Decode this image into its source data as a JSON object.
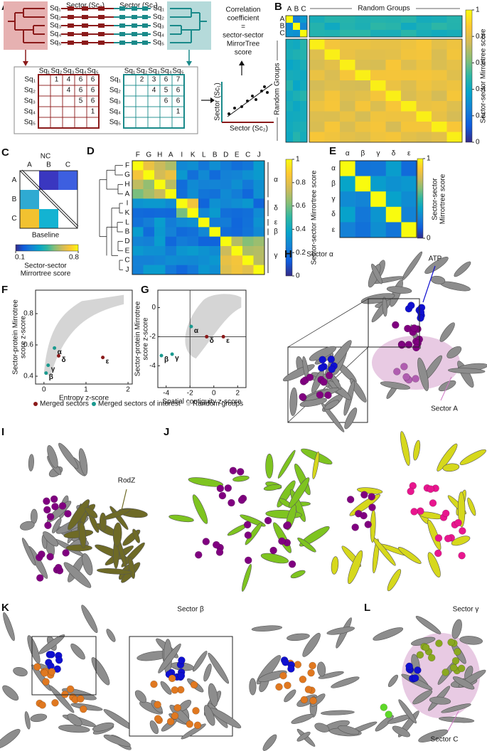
{
  "panels": {
    "A": {
      "letter": "A",
      "sector_2": "Sector (Sc₂)",
      "sector_1": "Sector (Sc₁)",
      "sequences": [
        "Sq₁",
        "Sq₂",
        "Sq₃",
        "Sq₄",
        "Sq₅"
      ],
      "matrix_left_rows": [
        [
          1,
          4,
          6,
          6
        ],
        [
          4,
          6,
          6
        ],
        [
          5,
          6
        ],
        [
          1
        ]
      ],
      "matrix_right_rows": [
        [
          2,
          3,
          6,
          7
        ],
        [
          4,
          5,
          6
        ],
        [
          6,
          6
        ],
        [
          1
        ]
      ],
      "correlation_lines": [
        "Correlation",
        "coefficient",
        "=",
        "sector-sector",
        "MirrorTree",
        "score"
      ],
      "scatter_y": "Sector (Sc₁)",
      "scatter_x": "Sector (Sc₂)"
    },
    "B": {
      "letter": "B",
      "sectors": [
        "A",
        "B",
        "C"
      ],
      "random_top": "Random Groups",
      "random_left": "Random Groups",
      "colorbar_lim": [
        0,
        1
      ],
      "colorbar_ticks": [
        0,
        0.2,
        0.4,
        0.6,
        0.8,
        1
      ],
      "colorbar_label": "Sector-sector Mirrortree score"
    },
    "C": {
      "letter": "C",
      "top": "NC",
      "bottom": "Baseline",
      "columns": [
        "A",
        "B",
        "C"
      ],
      "rows": [
        "A",
        "B",
        "C"
      ],
      "colorbar_lim": [
        0.1,
        0.8
      ],
      "colorbar_ticks": [
        0.1,
        0.8
      ],
      "colorbar_label_lines": [
        "Sector-sector",
        "Mirrortree score"
      ]
    },
    "D": {
      "letter": "D",
      "labels": [
        "F",
        "G",
        "H",
        "A",
        "I",
        "K",
        "L",
        "B",
        "D",
        "E",
        "C",
        "J"
      ],
      "groups": [
        "α",
        "δ",
        "ε",
        "β",
        "γ"
      ],
      "colorbar_lim": [
        0,
        1
      ],
      "colorbar_ticks": [
        0,
        0.2,
        0.4,
        0.6,
        0.8,
        1
      ],
      "colorbar_label": "Sector-sector Mirrortree score"
    },
    "E": {
      "letter": "E",
      "labels": [
        "α",
        "β",
        "γ",
        "δ",
        "ε"
      ],
      "colorbar_lim": [
        0,
        1
      ],
      "colorbar_ticks": [
        0,
        1
      ],
      "colorbar_label_lines": [
        "Sector-sector",
        "Mirrortree score"
      ]
    },
    "F": {
      "letter": "F",
      "type": "scatter",
      "y_label_lines": [
        "Sector-protein Mirrotree",
        "score z-score"
      ],
      "x_label": "Entropy z-score",
      "xlim": [
        -0.2,
        2.1
      ],
      "ylim": [
        0.35,
        0.95
      ],
      "xticks": [
        0,
        1,
        2
      ],
      "yticks": [
        0.4,
        0.6,
        0.8
      ],
      "points": {
        "names": [
          "α",
          "β",
          "γ",
          "δ",
          "ε"
        ],
        "x": [
          0.25,
          0.05,
          0.1,
          0.35,
          1.4
        ],
        "y": [
          0.58,
          0.42,
          0.47,
          0.53,
          0.52
        ],
        "groups": [
          1,
          1,
          1,
          0,
          0
        ]
      }
    },
    "G": {
      "letter": "G",
      "type": "scatter",
      "y_label_lines": [
        "Sector-protein Mirrotree",
        "score z-score"
      ],
      "x_label": "Spatial contiguity z-score",
      "xlim": [
        -4.7,
        2.7
      ],
      "ylim": [
        -5.5,
        1.2
      ],
      "xticks": [
        -4,
        -2,
        0,
        2
      ],
      "yticks": [
        -4,
        -2,
        0
      ],
      "reference": [
        -2,
        -2
      ],
      "points": {
        "names": [
          "α",
          "β",
          "γ",
          "δ",
          "ε"
        ],
        "x": [
          -1.9,
          -4.4,
          -3.5,
          -0.6,
          0.8
        ],
        "y": [
          -1.3,
          -3.3,
          -3.2,
          -2.0,
          -2.0
        ],
        "groups": [
          1,
          1,
          1,
          0,
          0
        ]
      }
    },
    "legend": {
      "names": [
        "Merged sectors",
        "Merged sectors of interest",
        "Random groups"
      ],
      "colors": [
        "#8b1a1a",
        "#1a9a8f",
        "#d0d0d0"
      ]
    },
    "H": {
      "letter": "H",
      "title": "Sector α",
      "atp": "ATP",
      "sector": "Sector A"
    },
    "I": {
      "letter": "I",
      "rodz": "RodZ"
    },
    "J": {
      "letter": "J"
    },
    "K": {
      "letter": "K",
      "title": "Sector β"
    },
    "L": {
      "letter": "L",
      "title": "Sector γ",
      "sector": "Sector C"
    }
  }
}
